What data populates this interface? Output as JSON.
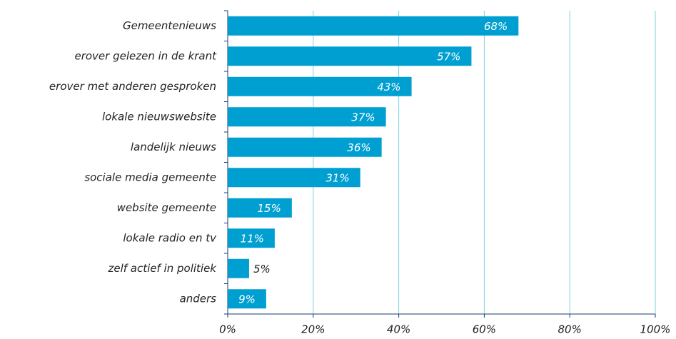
{
  "chart_data": {
    "type": "barh",
    "categories": [
      "Gemeentenieuws",
      "erover gelezen in de krant",
      "erover met anderen gesproken",
      "lokale nieuwswebsite",
      "landelijk nieuws",
      "sociale media gemeente",
      "website gemeente",
      "lokale radio en tv",
      "zelf actief in politiek",
      "anders"
    ],
    "values": [
      68,
      57,
      43,
      37,
      36,
      31,
      15,
      11,
      5,
      9
    ],
    "value_labels": [
      "68%",
      "57%",
      "43%",
      "37%",
      "36%",
      "31%",
      "15%",
      "11%",
      "5%",
      "9%"
    ],
    "color": "#009fd1",
    "xlim": [
      0,
      100
    ],
    "xticks": [
      {
        "value": 0,
        "label": "0%"
      },
      {
        "value": 20,
        "label": "20%"
      },
      {
        "value": 40,
        "label": "40%"
      },
      {
        "value": 60,
        "label": "60%"
      },
      {
        "value": 80,
        "label": "80%"
      },
      {
        "value": 100,
        "label": "100%"
      }
    ],
    "grid": true
  }
}
